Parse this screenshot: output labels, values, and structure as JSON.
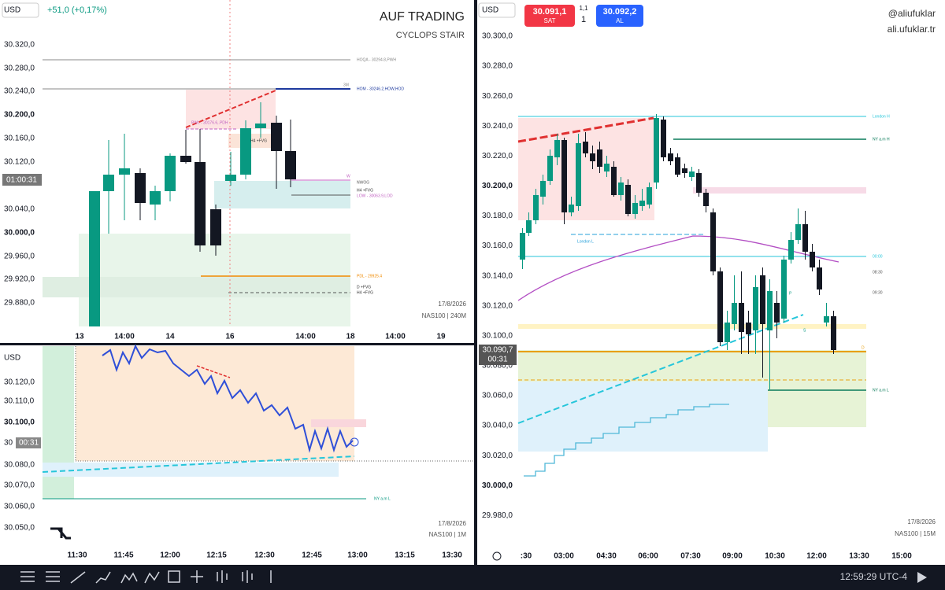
{
  "panes": [
    {
      "currency": "USD",
      "change": "+51,0 (+0,17%)",
      "title": "AUF TRADING",
      "subtitle": "CYCLOPS STAIR",
      "price_labels": [
        "30.320,0",
        "30.280,0",
        "30.240,0",
        "30.200,0",
        "30.160,0",
        "30.120,0",
        "30.040,0",
        "30.000,0",
        "29.960,0",
        "29.920,0",
        "29.880,0"
      ],
      "cursor_label": "01:00:31",
      "time_labels": [
        "13",
        "14:00",
        "14",
        "16",
        "14:00",
        "18",
        "14:00",
        "19"
      ],
      "date": "17/8/2026",
      "symbol": "NAS100 | 240M",
      "annotations": [
        "HOQA - 30294.8,PWH",
        "3M",
        "HOM - 30246.2,HOW,HOD",
        "PWL - 30176.6,.PDH",
        "H4 +FVG",
        "W",
        "H4 +FVG",
        "LOW - 30063.9,LOD",
        "NWOG",
        "PDL - 29925.4",
        "D +FVG",
        "H4 +FVG"
      ]
    },
    {
      "currency": "USD",
      "price_labels": [
        "30.120,0",
        "30.110,0",
        "30.100,0",
        "30",
        "30.080,0",
        "30.070,0",
        "30.060,0",
        "30.050,0"
      ],
      "cursor_label": "00:31",
      "time_labels": [
        "11:30",
        "11:45",
        "12:00",
        "12:15",
        "12:30",
        "12:45",
        "13:00",
        "13:15",
        "13:30"
      ],
      "date": "17/8/2026",
      "symbol": "NAS100 | 1M",
      "annotations": [
        "NY a.m L"
      ]
    },
    {
      "currency": "USD",
      "sell_price": "30.091,1",
      "sell_label": "SAT",
      "spread": "1,1",
      "quantity": "1",
      "buy_price": "30.092,2",
      "buy_label": "AL",
      "handle": "@aliufuklar",
      "site": "ali.ufuklar.tr",
      "price_labels": [
        "30.300,0",
        "30.280,0",
        "30.260,0",
        "30.240,0",
        "30.220,0",
        "30.200,0",
        "30.180,0",
        "30.160,0",
        "30.140,0",
        "30.120,0",
        "30.100,0",
        "30.080,0",
        "30.060,0",
        "30.040,0",
        "30.020,0",
        "30.000,0",
        "29.980,0"
      ],
      "current_price": "30.090,7",
      "countdown": "00:31",
      "time_labels": [
        ":30",
        "03:00",
        "04:30",
        "06:00",
        "07:30",
        "09:00",
        "10:30",
        "12:00",
        "13:30",
        "15:00"
      ],
      "date": "17/8/2026",
      "symbol": "NAS100 | 15M",
      "annotations": [
        "London H",
        "NY a.m H",
        "London L",
        "00:00",
        "08:30",
        "09:30",
        "P",
        "S",
        "D",
        "NY a.m L"
      ]
    }
  ],
  "toolbar": {
    "clock": "12:59:29 UTC-4"
  }
}
